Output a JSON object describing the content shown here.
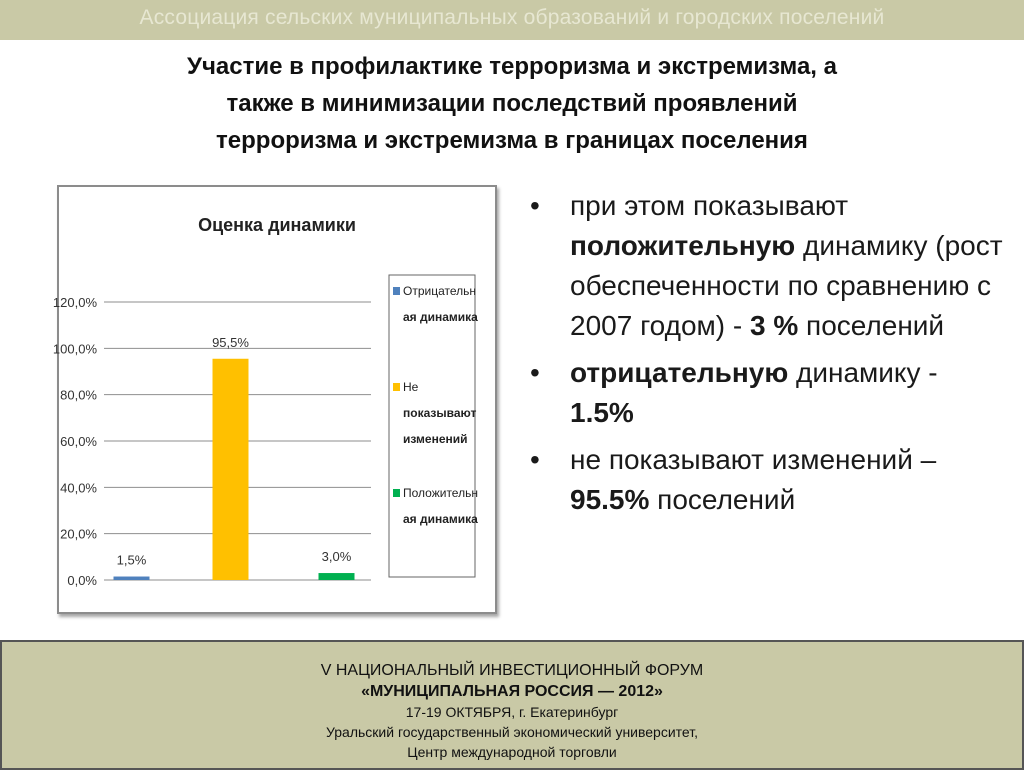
{
  "header": {
    "text": "Ассоциация сельских муниципальных образований и городских поселений"
  },
  "title_lines": [
    "Участие в профилактике терроризма и экстремизма, а",
    "также в минимизации последствий проявлений",
    "терроризма и экстремизма в границах поселения"
  ],
  "bullets": {
    "b1": {
      "pre": " при этом показывают ",
      "bold1": "положительную",
      "mid": " динамику (рост обеспеченности по сравнению с 2007 годом) - ",
      "bold2": "3 %",
      "post": " поселений"
    },
    "b2": {
      "bold1": " отрицательную",
      "mid": " динамику  -  ",
      "bold2": "1.5%"
    },
    "b3": {
      "pre": " не показывают изменений – ",
      "bold1": "95.5%",
      "post": " поселений"
    },
    "marker": "•"
  },
  "chart_data": {
    "type": "bar",
    "title": "Оценка динамики",
    "ylim": [
      0,
      120
    ],
    "yticks": [
      "0,0%",
      "20,0%",
      "40,0%",
      "60,0%",
      "80,0%",
      "100,0%",
      "120,0%"
    ],
    "grid": true,
    "legend_position": "right",
    "series": [
      {
        "name": "Отрицательная динамика",
        "legend_lines": [
          "Отрицательн",
          "ая динамика"
        ],
        "value": 1.5,
        "label": "1,5%",
        "color": "#4f81bd"
      },
      {
        "name": "Не показывают изменений",
        "legend_lines": [
          "Не",
          "показывают",
          "изменений"
        ],
        "value": 95.5,
        "label": "95,5%",
        "color": "#ffc000"
      },
      {
        "name": "Положительная динамика",
        "legend_lines": [
          "Положительн",
          "ая динамика"
        ],
        "value": 3.0,
        "label": "3,0%",
        "color": "#00b050"
      }
    ]
  },
  "footer": {
    "line1": "V НАЦИОНАЛЬНЫЙ ИНВЕСТИЦИОННЫЙ ФОРУМ",
    "line2": "«МУНИЦИПАЛЬНАЯ РОССИЯ — 2012»",
    "line3": "17-19 ОКТЯБРЯ, г. Екатеринбург",
    "line4": "Уральский государственный экономический университет,",
    "line5": "Центр международной торговли"
  }
}
